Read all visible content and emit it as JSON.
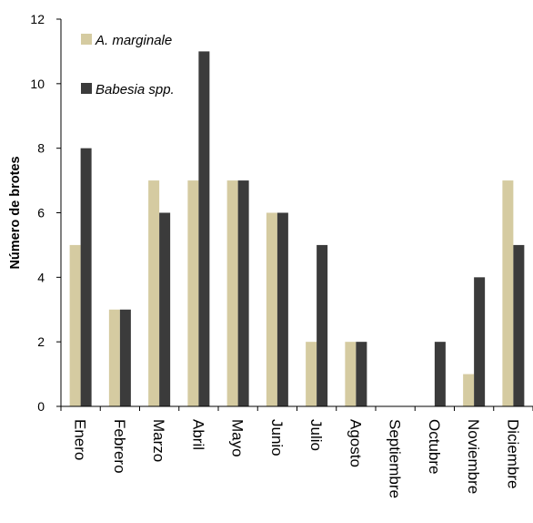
{
  "chart_data": {
    "type": "bar",
    "title": "",
    "xlabel": "",
    "ylabel": "Número de brotes",
    "ylim": [
      0,
      12
    ],
    "yticks": [
      0,
      2,
      4,
      6,
      8,
      10,
      12
    ],
    "grid": false,
    "legend_position": "top-left",
    "categories": [
      "Enero",
      "Febrero",
      "Marzo",
      "Abril",
      "Mayo",
      "Junio",
      "Julio",
      "Agosto",
      "Septiembre",
      "Octubre",
      "Noviembre",
      "Diciembre"
    ],
    "series": [
      {
        "name": "A. marginale",
        "color": "#d5cba1",
        "values": [
          5,
          3,
          7,
          7,
          7,
          6,
          2,
          2,
          0,
          0,
          1,
          7
        ]
      },
      {
        "name": "Babesia spp.",
        "color": "#3b3b3b",
        "values": [
          8,
          3,
          6,
          11,
          7,
          6,
          5,
          2,
          0,
          2,
          4,
          5
        ]
      }
    ]
  }
}
